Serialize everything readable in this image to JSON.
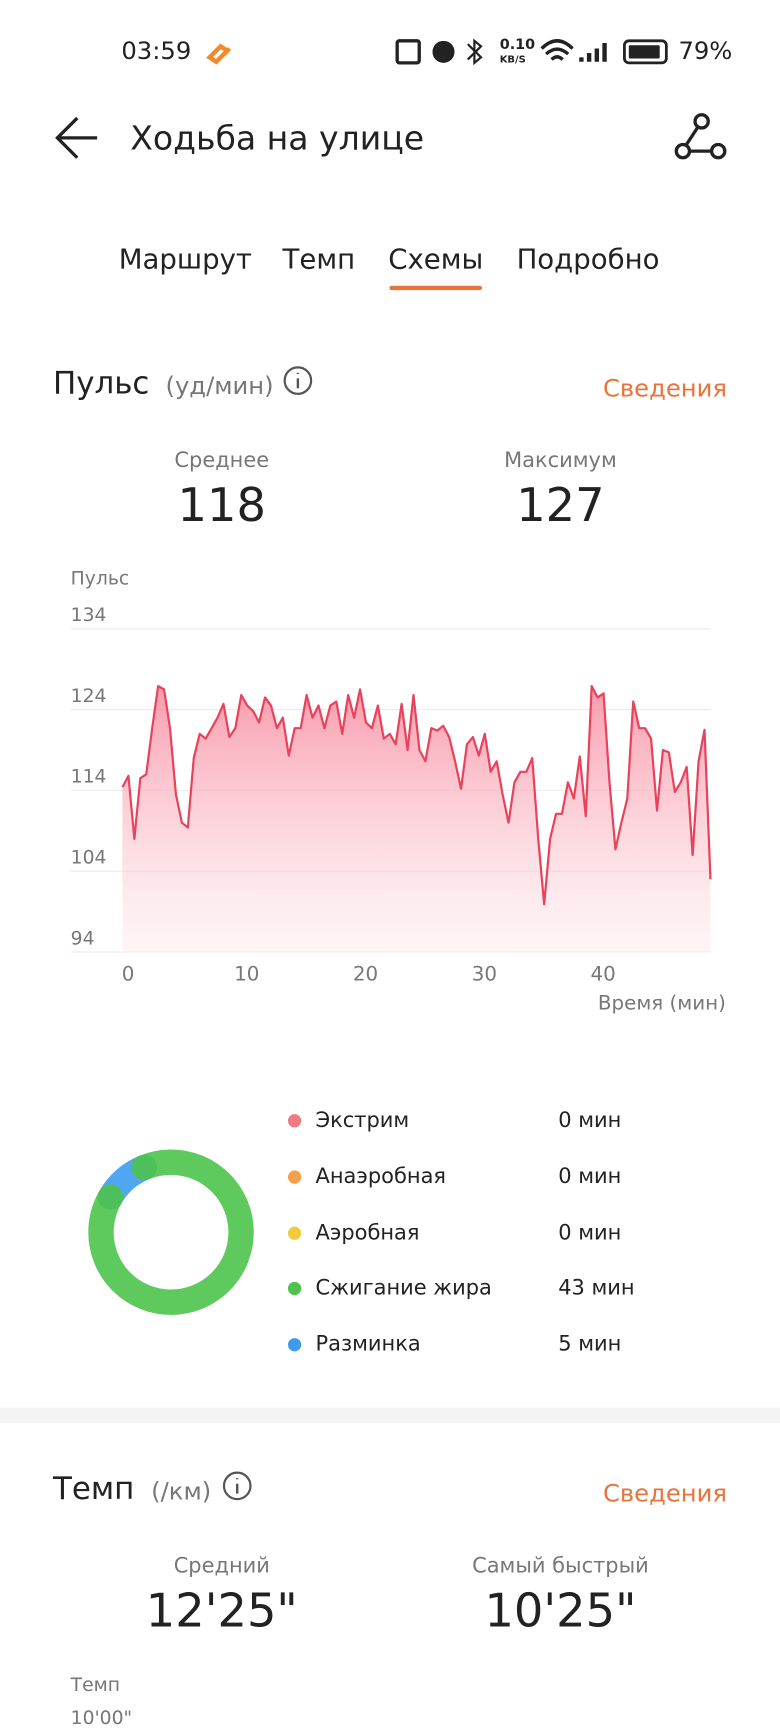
{
  "status_bar": {
    "time": "03:59",
    "speed": "0.10",
    "speed_unit": "KB/S",
    "battery": "79%"
  },
  "header": {
    "title": "Ходьба на улице"
  },
  "tabs": {
    "items": [
      "Маршрут",
      "Темп",
      "Схемы",
      "Подробно"
    ],
    "active": 2
  },
  "pulse": {
    "title": "Пульс",
    "unit": "(уд/мин)",
    "link": "Сведения",
    "stats": [
      {
        "label": "Среднее",
        "value": 118
      },
      {
        "label": "Максимум",
        "value": 127
      }
    ]
  },
  "chart_data": {
    "type": "line",
    "ylabel": "Пульс",
    "xlabel": "Время (мин)",
    "color": "#e8425c",
    "x": [
      0,
      0.5,
      1,
      1.5,
      2,
      2.5,
      3,
      3.5,
      4,
      4.5,
      5,
      5.5,
      6,
      6.5,
      7,
      7.5,
      8,
      8.5,
      9,
      9.5,
      10,
      10.5,
      11,
      11.5,
      12,
      12.5,
      13,
      13.5,
      14,
      14.5,
      15,
      15.5,
      16,
      16.5,
      17,
      17.5,
      18,
      18.5,
      19,
      19.5,
      20,
      20.5,
      21,
      21.5,
      22,
      22.5,
      23,
      23.5,
      24,
      24.5,
      25,
      25.5,
      26,
      26.5,
      27,
      27.5,
      28,
      28.5,
      29,
      29.5,
      30,
      30.5,
      31,
      31.5,
      32,
      32.5,
      33,
      33.5,
      34,
      34.5,
      35,
      35.5,
      36,
      36.5,
      37,
      37.5,
      38,
      38.5,
      39,
      39.5,
      40,
      40.5,
      41,
      41.5,
      42,
      42.5,
      43,
      43.5,
      44,
      44.5,
      45,
      45.5,
      46,
      46.5,
      47,
      47.5,
      48,
      48.5,
      49,
      49.5
    ],
    "values": [
      114.4,
      115.8,
      108,
      115.5,
      116,
      121.7,
      126.9,
      126.5,
      121.7,
      113.5,
      110,
      109.4,
      118,
      121,
      120.4,
      121.7,
      123,
      124.7,
      120.6,
      121.7,
      125.8,
      124.5,
      123.8,
      122.4,
      125.5,
      124.5,
      121.7,
      123,
      118.3,
      121.7,
      121.7,
      125.8,
      123,
      124.5,
      121.7,
      124.5,
      125,
      121,
      125.8,
      123,
      126.5,
      122.4,
      121.7,
      124.5,
      120.4,
      121,
      119.7,
      124.7,
      119,
      125.8,
      119,
      117.6,
      121.7,
      121.4,
      122,
      120.6,
      117.6,
      114.2,
      119.7,
      120.6,
      118.3,
      121,
      116.3,
      117.6,
      113.5,
      110,
      115,
      116.3,
      116.3,
      118,
      108,
      99.9,
      108,
      111.1,
      111.1,
      115,
      113,
      118.2,
      110.8,
      126.9,
      125.5,
      126,
      115,
      106.7,
      110,
      113,
      125,
      121.7,
      121.7,
      120.4,
      111.5,
      119,
      118.7,
      113.8,
      115,
      116.9,
      106,
      117.6,
      121.5,
      103
    ],
    "xlim": [
      0,
      49.5
    ],
    "ylim": [
      94,
      134
    ],
    "xticks": [
      0,
      10,
      20,
      30,
      40
    ],
    "yticks": [
      94,
      104,
      114,
      124,
      134
    ],
    "grid": true
  },
  "zones": {
    "items": [
      {
        "name": "Экстрим",
        "color": "#f07a80",
        "value": 0,
        "value_label": "0 мин"
      },
      {
        "name": "Анаэробная",
        "color": "#f5a04a",
        "value": 0,
        "value_label": "0 мин"
      },
      {
        "name": "Аэробная",
        "color": "#f3c93d",
        "value": 0,
        "value_label": "0 мин"
      },
      {
        "name": "Сжигание жира",
        "color": "#4cc34a",
        "value": 43,
        "value_label": "43 мин"
      },
      {
        "name": "Разминка",
        "color": "#3d9cf0",
        "value": 5,
        "value_label": "5 мин"
      }
    ]
  },
  "pace": {
    "title": "Темп",
    "unit": "(/км)",
    "link": "Сведения",
    "stats": [
      {
        "label": "Средний",
        "value": "12'25\""
      },
      {
        "label": "Самый быстрый",
        "value": "10'25\""
      }
    ],
    "chart_label": "Темп",
    "tick_label": "10'00\""
  }
}
